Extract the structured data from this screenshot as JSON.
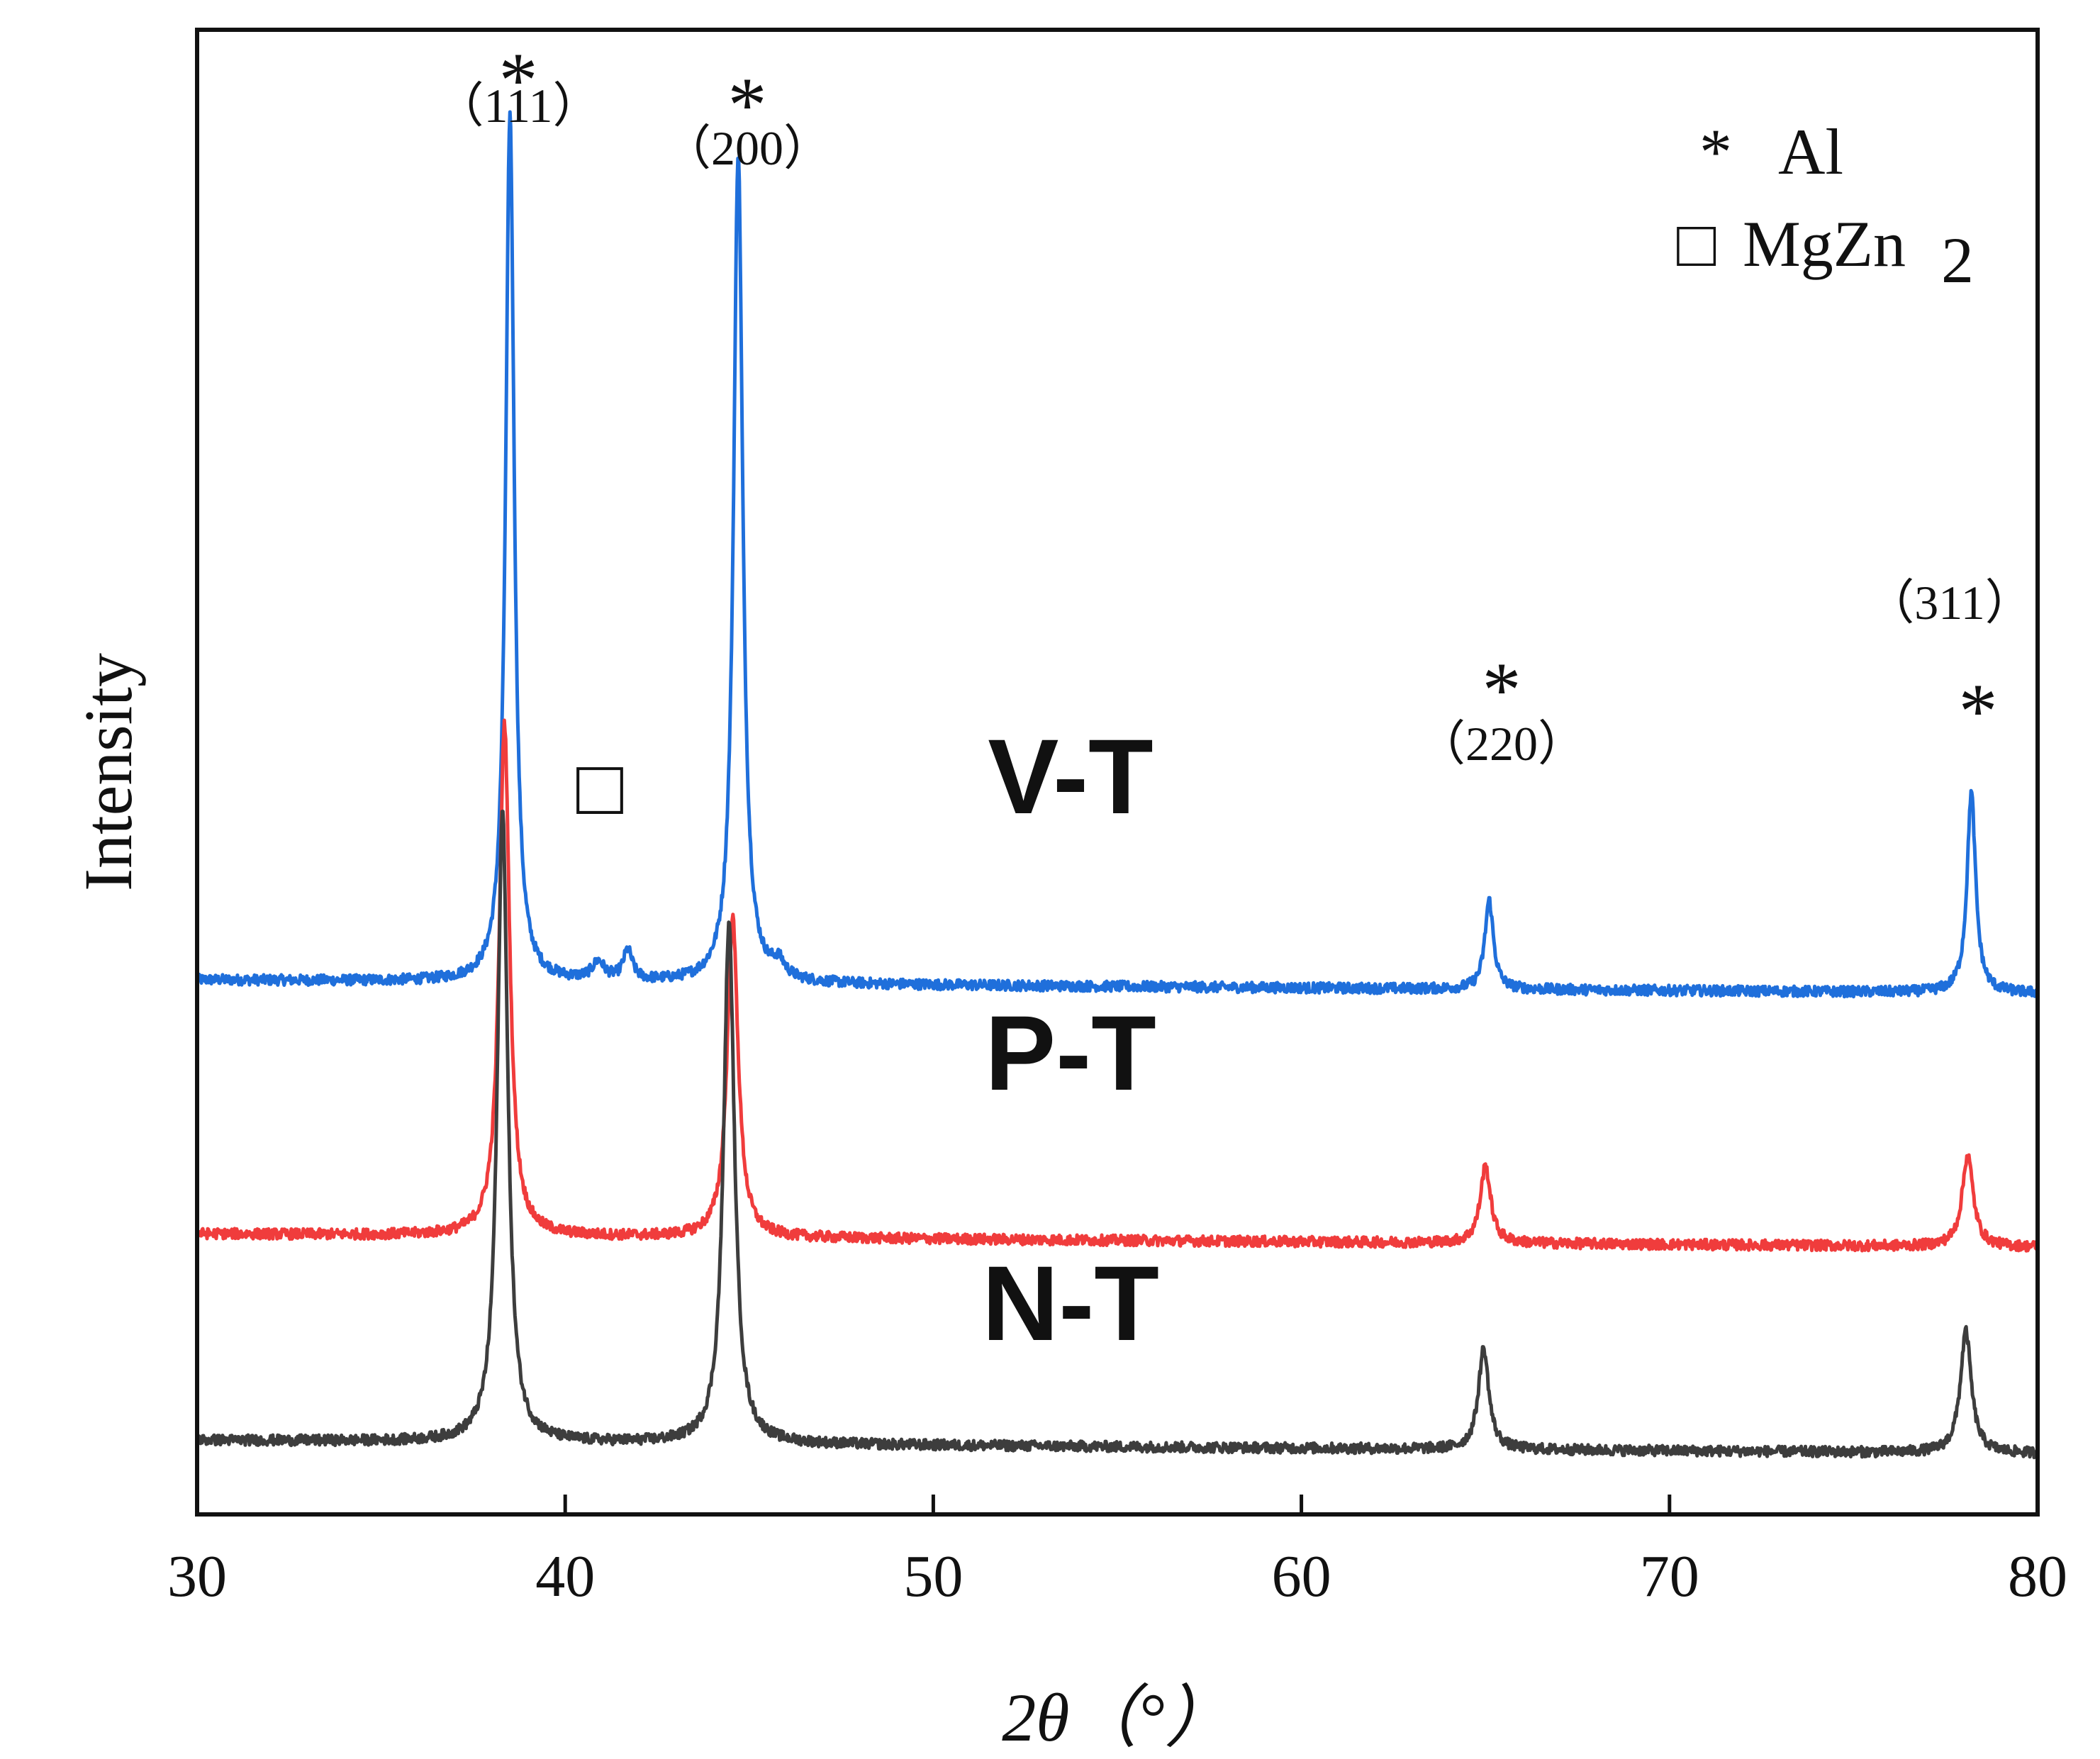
{
  "chart_data": {
    "type": "line",
    "title": "",
    "xlabel": "2θ（°）",
    "ylabel": "Intensity",
    "xlim": [
      30,
      80
    ],
    "ylim": [
      0,
      1
    ],
    "x_ticks": [
      "30",
      "40",
      "50",
      "60",
      "70",
      "80"
    ],
    "grid": false,
    "series": [
      {
        "name": "V-T",
        "color": "#1f6fdb",
        "baseline": 0.36,
        "noise": 0.0035,
        "peaks": [
          {
            "x": 38.5,
            "height": 0.585,
            "width": 0.14
          },
          {
            "x": 44.7,
            "height": 0.56,
            "width": 0.15
          },
          {
            "x": 65.1,
            "height": 0.06,
            "width": 0.14
          },
          {
            "x": 78.2,
            "height": 0.135,
            "width": 0.14
          },
          {
            "x": 40.9,
            "height": 0.012,
            "width": 0.2
          },
          {
            "x": 41.7,
            "height": 0.02,
            "width": 0.15
          },
          {
            "x": 45.8,
            "height": 0.01,
            "width": 0.2
          }
        ]
      },
      {
        "name": "P-T",
        "color": "#f03c3c",
        "baseline": 0.189,
        "noise": 0.0035,
        "peaks": [
          {
            "x": 38.35,
            "height": 0.345,
            "width": 0.17
          },
          {
            "x": 44.55,
            "height": 0.215,
            "width": 0.18
          },
          {
            "x": 65.0,
            "height": 0.052,
            "width": 0.17
          },
          {
            "x": 78.1,
            "height": 0.062,
            "width": 0.18
          }
        ]
      },
      {
        "name": "N-T",
        "color": "#3d3d3d",
        "baseline": 0.05,
        "noise": 0.0035,
        "peaks": [
          {
            "x": 38.3,
            "height": 0.425,
            "width": 0.17
          },
          {
            "x": 44.45,
            "height": 0.35,
            "width": 0.18
          },
          {
            "x": 64.95,
            "height": 0.068,
            "width": 0.17
          },
          {
            "x": 78.05,
            "height": 0.082,
            "width": 0.18
          }
        ]
      }
    ],
    "annotations": [
      {
        "hkl": "（111）",
        "marker": "*",
        "x": 38.5
      },
      {
        "hkl": "（200）",
        "marker": "*",
        "x": 44.7
      },
      {
        "hkl": "（220）",
        "marker": "*",
        "x": 65.1
      },
      {
        "hkl": "（311）",
        "marker": "*",
        "x": 78.2
      },
      {
        "marker": "□",
        "x": 40.9
      }
    ],
    "legend": {
      "position": "top-right",
      "entries": [
        {
          "symbol": "*",
          "label": "Al"
        },
        {
          "symbol": "□",
          "label": "MgZn",
          "subscript": "2"
        }
      ]
    }
  }
}
